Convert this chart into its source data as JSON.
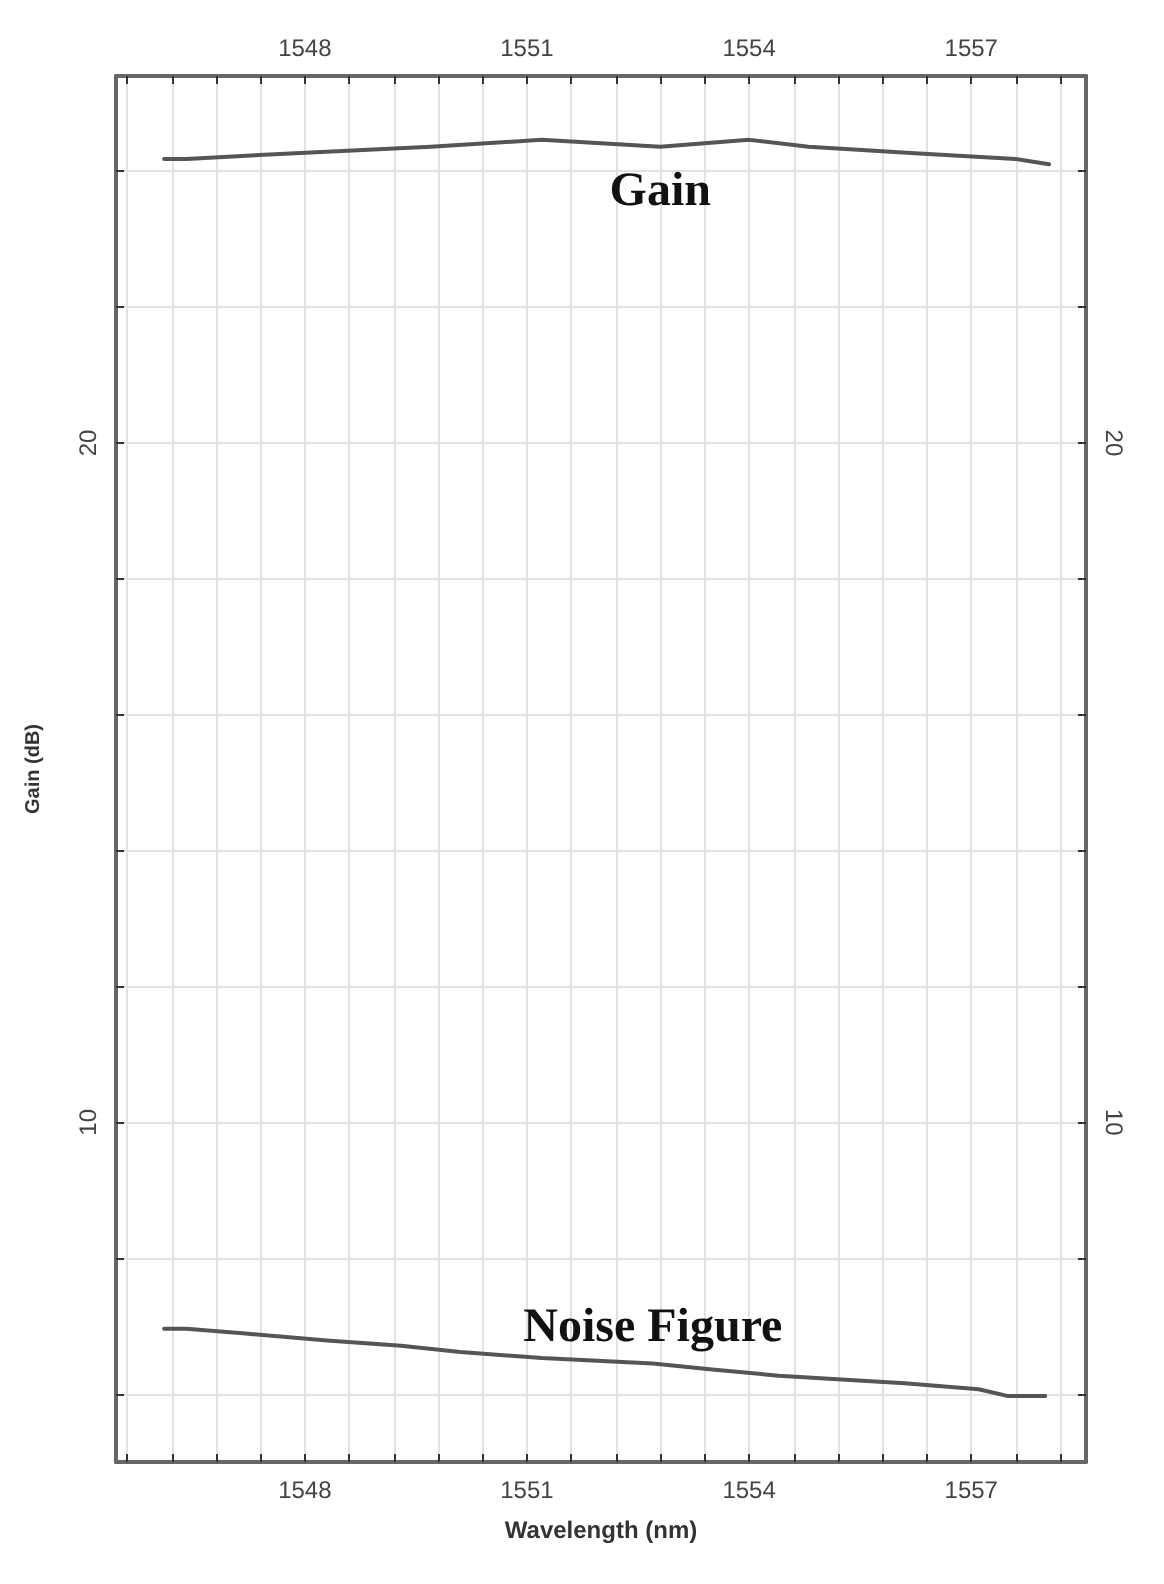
{
  "chart_data": {
    "type": "line",
    "xlabel": "Wavelength (nm)",
    "ylabel": "Gain (dB)",
    "xlim": [
      1545.45,
      1558.55
    ],
    "xticks": [
      {
        "value": 1545.6,
        "label": null
      },
      {
        "value": 1546.2,
        "label": null
      },
      {
        "value": 1546.8,
        "label": null
      },
      {
        "value": 1547.4,
        "label": null
      },
      1548,
      {
        "value": 1548.6,
        "label": null
      },
      {
        "value": 1549.2,
        "label": null
      },
      {
        "value": 1549.8,
        "label": null
      },
      {
        "value": 1550.4,
        "label": null
      },
      1551,
      {
        "value": 1551.6,
        "label": null
      },
      {
        "value": 1552.2,
        "label": null
      },
      {
        "value": 1552.8,
        "label": null
      },
      {
        "value": 1553.4,
        "label": null
      },
      1554,
      {
        "value": 1554.6,
        "label": null
      },
      {
        "value": 1555.2,
        "label": null
      },
      {
        "value": 1555.8,
        "label": null
      },
      {
        "value": 1556.4,
        "label": null
      },
      1557,
      {
        "value": 1557.6,
        "label": null
      },
      {
        "value": 1558.2,
        "label": null
      }
    ],
    "x2lim": [
      1545.45,
      1558.55
    ],
    "x2ticks": [
      {
        "value": 1545.6,
        "label": null
      },
      {
        "value": 1546.2,
        "label": null
      },
      {
        "value": 1546.8,
        "label": null
      },
      {
        "value": 1547.4,
        "label": null
      },
      1548,
      {
        "value": 1548.6,
        "label": null
      },
      {
        "value": 1549.2,
        "label": null
      },
      {
        "value": 1549.8,
        "label": null
      },
      {
        "value": 1550.4,
        "label": null
      },
      1551,
      {
        "value": 1551.6,
        "label": null
      },
      {
        "value": 1552.2,
        "label": null
      },
      {
        "value": 1552.8,
        "label": null
      },
      {
        "value": 1553.4,
        "label": null
      },
      1554,
      {
        "value": 1554.6,
        "label": null
      },
      {
        "value": 1555.2,
        "label": null
      },
      {
        "value": 1555.8,
        "label": null
      },
      {
        "value": 1556.4,
        "label": null
      },
      1557,
      {
        "value": 1557.6,
        "label": null
      },
      {
        "value": 1558.2,
        "label": null
      }
    ],
    "ylim": [
      5,
      25.4
    ],
    "yticks": [
      {
        "value": 6,
        "label": null
      },
      {
        "value": 8,
        "label": null
      },
      10,
      {
        "value": 12,
        "label": null
      },
      {
        "value": 14,
        "label": null
      },
      {
        "value": 16,
        "label": null
      },
      {
        "value": 18,
        "label": null
      },
      20,
      {
        "value": 22,
        "label": null
      },
      {
        "value": 24,
        "label": null
      }
    ],
    "y2lim": [
      5,
      25.4
    ],
    "y2ticks": [
      {
        "value": 6,
        "label": null
      },
      {
        "value": 8,
        "label": null
      },
      10,
      {
        "value": 12,
        "label": null
      },
      {
        "value": 14,
        "label": null
      },
      {
        "value": 16,
        "label": null
      },
      {
        "value": 18,
        "label": null
      },
      20,
      {
        "value": 22,
        "label": null
      },
      {
        "value": 24,
        "label": null
      }
    ],
    "grid": true,
    "legend": false,
    "marker": "none",
    "line_style": "solid",
    "series": [
      {
        "name": "Gain",
        "color": "#555555",
        "x": [
          1546.1,
          1546.4,
          1547.8,
          1549.7,
          1551.2,
          1552.8,
          1554.0,
          1554.8,
          1556.3,
          1557.6,
          1558.05
        ],
        "values": [
          24.18,
          24.18,
          24.26,
          24.36,
          24.46,
          24.36,
          24.46,
          24.36,
          24.26,
          24.18,
          24.1
        ]
      },
      {
        "name": "Noise Figure",
        "color": "#555555",
        "x": [
          1546.1,
          1546.4,
          1547.2,
          1548.3,
          1549.3,
          1550.1,
          1551.2,
          1552.7,
          1553.5,
          1554.4,
          1556.1,
          1557.1,
          1557.5,
          1558.0
        ],
        "values": [
          6.96,
          6.96,
          6.89,
          6.79,
          6.71,
          6.62,
          6.53,
          6.45,
          6.36,
          6.27,
          6.16,
          6.07,
          5.97,
          5.97
        ]
      }
    ]
  }
}
